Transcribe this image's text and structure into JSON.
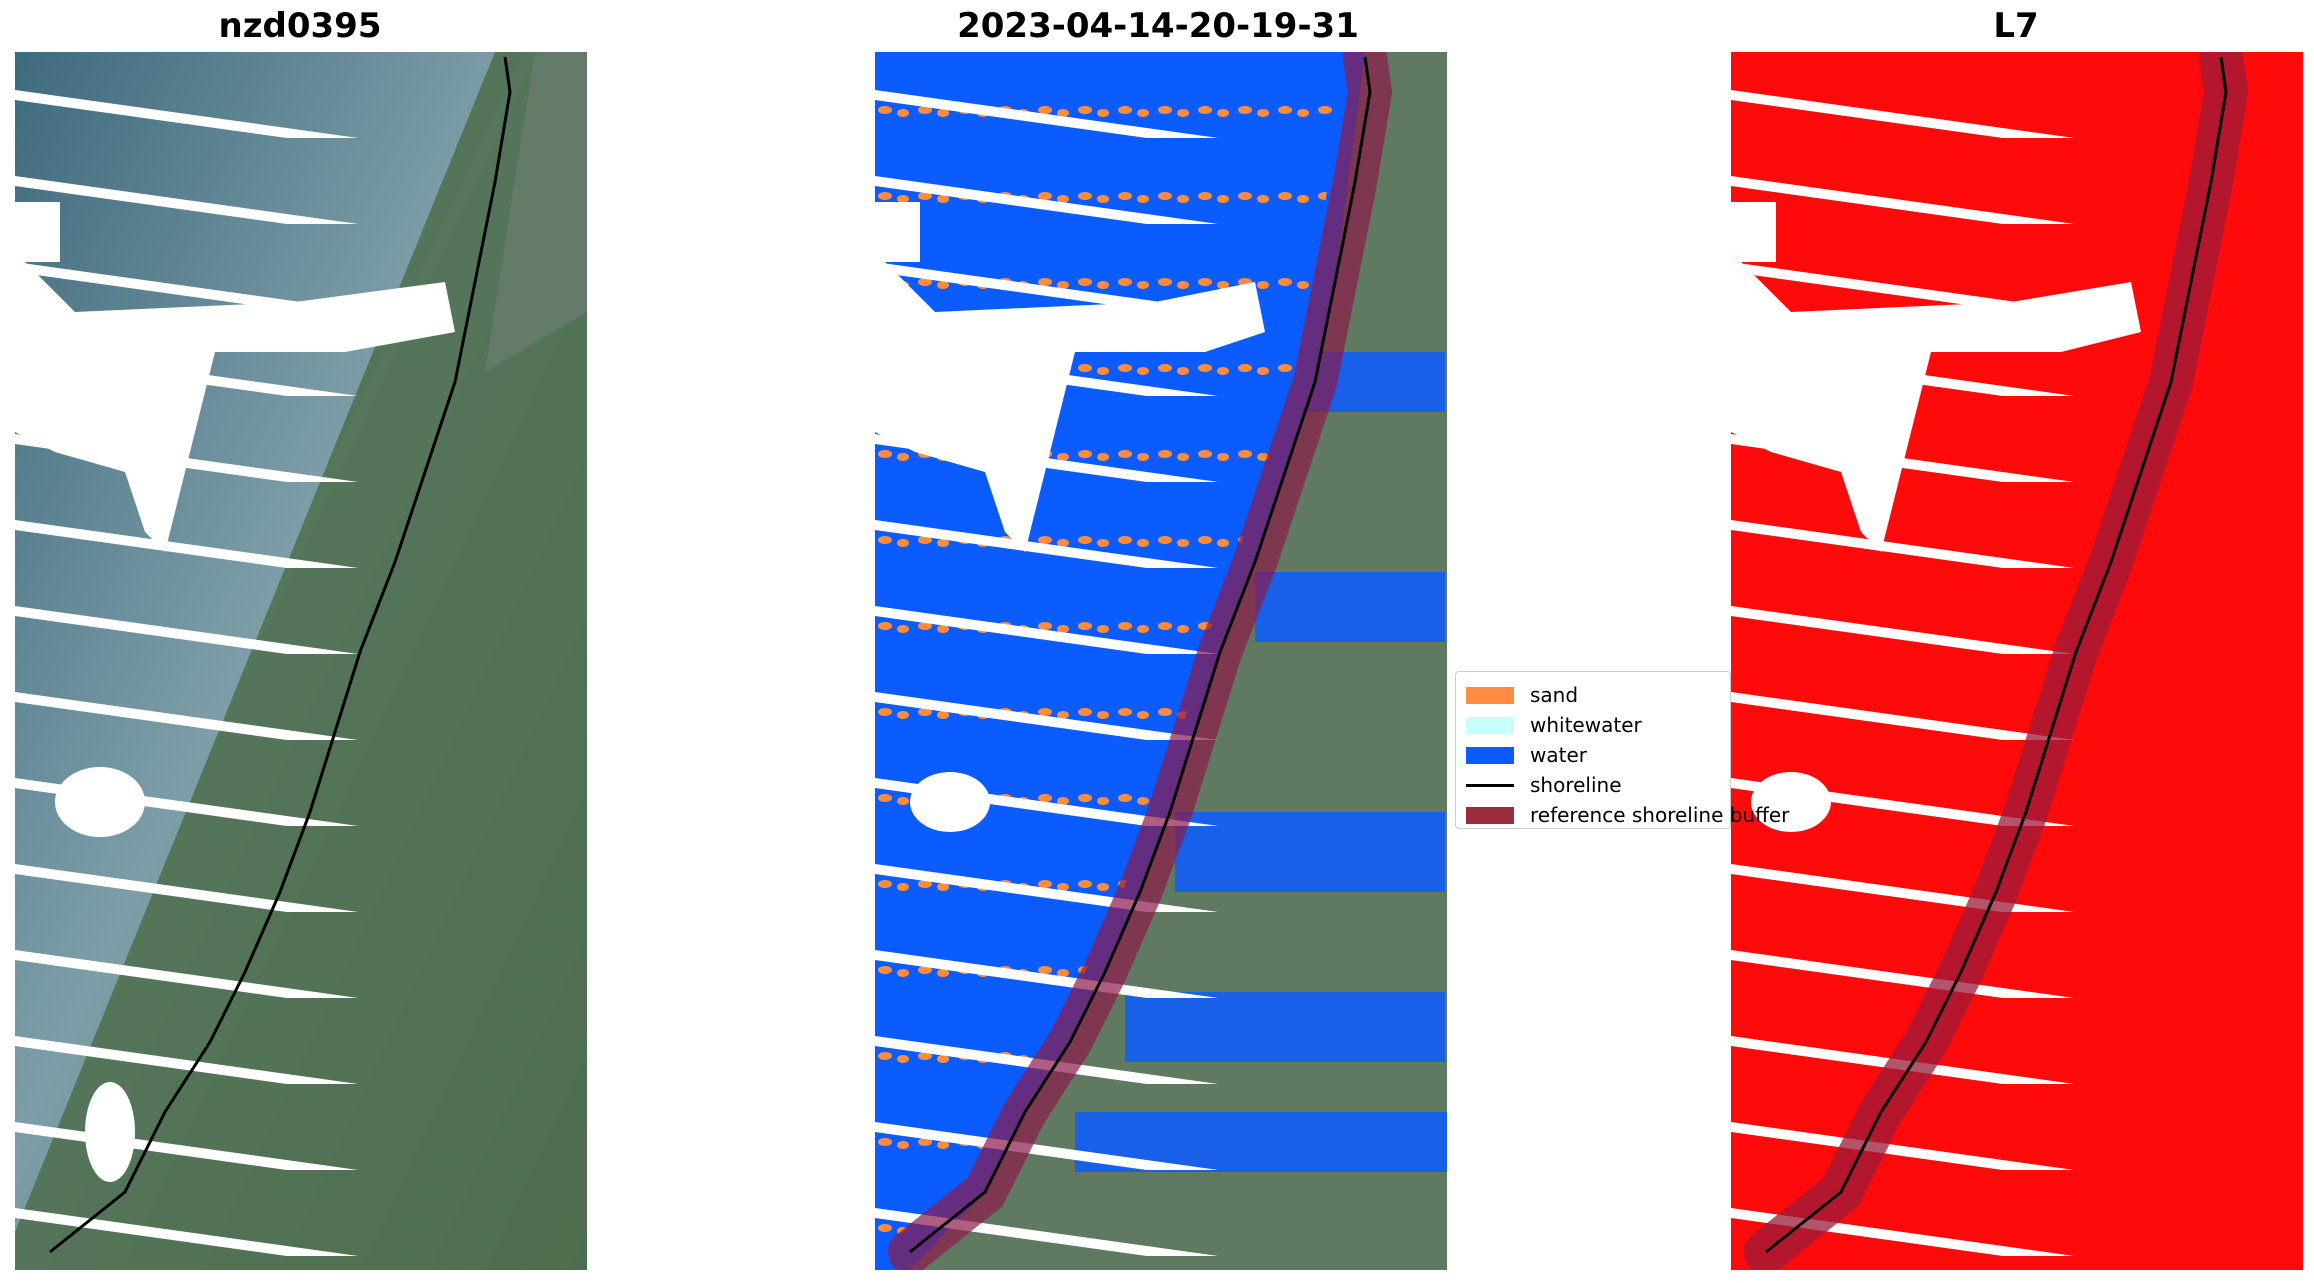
{
  "panels": [
    {
      "title": "nzd0395",
      "colors": {
        "base": "#4f7386",
        "land": "#4c6f4a"
      }
    },
    {
      "title": "2023-04-14-20-19-31",
      "colors": {
        "water": "#0b5cff",
        "sand": "#ff8c3a",
        "buffer": "#8b1a4a"
      }
    },
    {
      "title": "L7",
      "colors": {
        "mask": "#ff0a0a",
        "buffer": "#9b1b3a"
      }
    }
  ],
  "legend": [
    {
      "label": "sand",
      "kind": "patch",
      "color": "#ff8c40"
    },
    {
      "label": "whitewater",
      "kind": "patch",
      "color": "#c8ffff"
    },
    {
      "label": "water",
      "kind": "patch",
      "color": "#0b5cff"
    },
    {
      "label": "shoreline",
      "kind": "line",
      "color": "#000000"
    },
    {
      "label": "reference shoreline buffer",
      "kind": "patch",
      "color": "#9b2d3a"
    }
  ]
}
